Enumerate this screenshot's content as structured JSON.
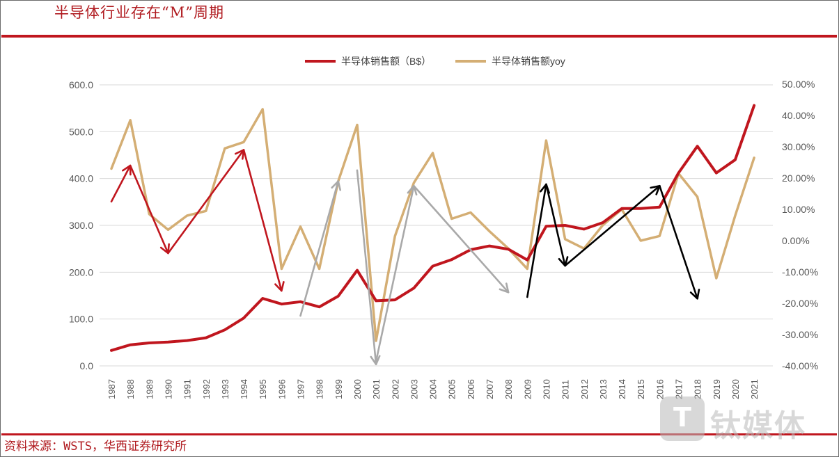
{
  "page": {
    "title": "半导体行业存在“M”周期",
    "source": "资料来源：WSTS，华西证券研究所",
    "watermark": "钛媒体",
    "watermark_icon": "T"
  },
  "chart_data": {
    "type": "line",
    "title": "",
    "xlabel": "",
    "ylabel_left": "",
    "ylabel_right": "",
    "x": [
      "1987",
      "1988",
      "1989",
      "1990",
      "1991",
      "1992",
      "1993",
      "1994",
      "1995",
      "1996",
      "1997",
      "1998",
      "1999",
      "2000",
      "2001",
      "2002",
      "2003",
      "2004",
      "2005",
      "2006",
      "2007",
      "2008",
      "2009",
      "2010",
      "2011",
      "2012",
      "2013",
      "2014",
      "2015",
      "2016",
      "2017",
      "2018",
      "2019",
      "2020",
      "2021"
    ],
    "y_left_ticks": [
      "600.0",
      "500.0",
      "400.0",
      "300.0",
      "200.0",
      "100.0",
      "0.0"
    ],
    "y_right_ticks": [
      "50.00%",
      "40.00%",
      "30.00%",
      "20.00%",
      "10.00%",
      "0.00%",
      "-10.00%",
      "-20.00%",
      "-30.00%",
      "-40.00%"
    ],
    "ylim_left": [
      0,
      600
    ],
    "ylim_right": [
      -40,
      50
    ],
    "legend_position": "top-center",
    "grid": "horizontal",
    "series": [
      {
        "name": "半导体销售额（B$）",
        "axis": "left",
        "color": "#c0161e",
        "values": [
          33,
          45,
          49,
          51,
          54,
          60,
          77,
          102,
          144,
          132,
          137,
          126,
          149,
          204,
          139,
          141,
          166,
          213,
          227,
          248,
          256,
          249,
          226,
          298,
          300,
          292,
          306,
          336,
          336,
          339,
          412,
          469,
          412,
          440,
          556
        ]
      },
      {
        "name": "半导体销售额yoy",
        "axis": "right",
        "color": "#d4ae74",
        "values": [
          23,
          38.5,
          8.5,
          3.5,
          8,
          9.5,
          29.5,
          31.5,
          42,
          -9,
          4.5,
          -9,
          19,
          37,
          -32,
          1.5,
          18.5,
          28,
          7,
          9,
          3,
          -2.5,
          -9,
          32,
          0.5,
          -2.5,
          5,
          10,
          0,
          1.5,
          21.5,
          14,
          -12,
          8,
          26.5
        ]
      }
    ],
    "annotations": [
      {
        "color": "#c0161e",
        "from": [
          "1987",
          12.5
        ],
        "to": [
          "1988",
          24
        ]
      },
      {
        "color": "#c0161e",
        "from": [
          "1988",
          24
        ],
        "to": [
          "1990",
          -4
        ]
      },
      {
        "color": "#c0161e",
        "from": [
          "1990",
          -4
        ],
        "to": [
          "1994",
          29
        ]
      },
      {
        "color": "#c0161e",
        "from": [
          "1994",
          29
        ],
        "to": [
          "1996",
          -16
        ]
      },
      {
        "color": "#a9a9a9",
        "from": [
          "1997",
          -24
        ],
        "to": [
          "1999",
          19
        ]
      },
      {
        "color": "#a9a9a9",
        "from": [
          "2000",
          22.5
        ],
        "to": [
          "2001",
          -39.5
        ]
      },
      {
        "color": "#a9a9a9",
        "from": [
          "2001",
          -38.5
        ],
        "to": [
          "2003",
          17.5
        ]
      },
      {
        "color": "#a9a9a9",
        "from": [
          "2003",
          17.5
        ],
        "to": [
          "2008",
          -16.5
        ]
      },
      {
        "color": "#000000",
        "from": [
          "2009",
          -18
        ],
        "to": [
          "2010",
          18
        ]
      },
      {
        "color": "#000000",
        "from": [
          "2010",
          18
        ],
        "to": [
          "2011",
          -8
        ]
      },
      {
        "color": "#000000",
        "from": [
          "2011",
          -8
        ],
        "to": [
          "2016",
          17.5
        ]
      },
      {
        "color": "#000000",
        "from": [
          "2016",
          17.5
        ],
        "to": [
          "2018",
          -18.5
        ]
      }
    ]
  }
}
